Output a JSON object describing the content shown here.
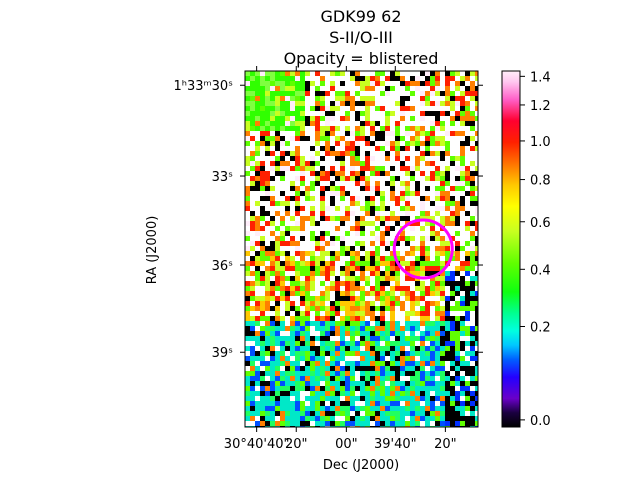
{
  "chart_data": {
    "type": "heatmap",
    "title_lines": [
      "GDK99 62",
      "S-II/O-III",
      "Opacity = blistered"
    ],
    "xlabel": "Dec (J2000)",
    "ylabel": "RA (J2000)",
    "x_ticks": [
      {
        "label": "30°40'40\"",
        "frac": 0.05
      },
      {
        "label": "20\"",
        "frac": 0.22
      },
      {
        "label": "00\"",
        "frac": 0.435
      },
      {
        "label": "39'40\"",
        "frac": 0.645
      },
      {
        "label": "20\"",
        "frac": 0.86
      }
    ],
    "y_ticks": [
      {
        "label": "1ʰ33ᵐ30ˢ",
        "frac": 0.04
      },
      {
        "label": "33ˢ",
        "frac": 0.295
      },
      {
        "label": "36ˢ",
        "frac": 0.545
      },
      {
        "label": "39ˢ",
        "frac": 0.79
      }
    ],
    "colorbar": {
      "colormap": "gist_ncar",
      "range": [
        0.0,
        1.4
      ],
      "ticks": [
        {
          "label": "0.0",
          "value": 0.0
        },
        {
          "label": "0.2",
          "value": 0.2
        },
        {
          "label": "0.4",
          "value": 0.4
        },
        {
          "label": "0.6",
          "value": 0.6
        },
        {
          "label": "0.8",
          "value": 0.8
        },
        {
          "label": "1.0",
          "value": 1.0
        },
        {
          "label": "1.2",
          "value": 1.2
        },
        {
          "label": "1.4",
          "value": 1.4
        }
      ]
    },
    "marker": {
      "shape": "circle",
      "color": "#ff00ff",
      "x_frac": 0.765,
      "y_frac": 0.5
    }
  }
}
